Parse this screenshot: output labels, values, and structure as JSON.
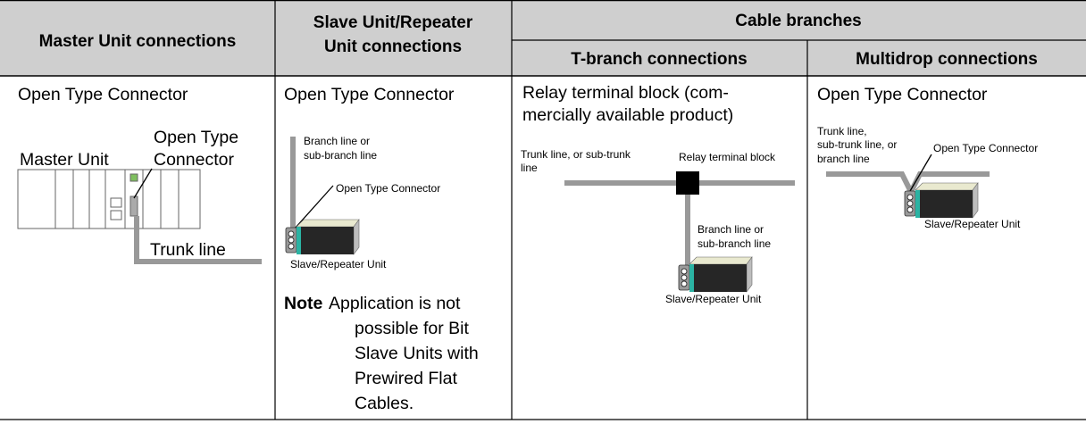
{
  "header": {
    "master": "Master Unit connections",
    "slave": [
      "Slave Unit/Repeater",
      "Unit connections"
    ],
    "cable_branches": "Cable branches",
    "t_branch": "T-branch connections",
    "multidrop": "Multidrop connections"
  },
  "master_column": {
    "heading": "Open Type Connector",
    "master_unit": "Master Unit",
    "connector": [
      "Open Type",
      "Connector"
    ],
    "trunk_line": "Trunk line"
  },
  "slave_column": {
    "heading": "Open Type Connector",
    "branch_line": [
      "Branch line or",
      "sub-branch line"
    ],
    "connector": "Open Type Connector",
    "unit": "Slave/Repeater Unit",
    "note_label": "Note",
    "note": [
      "Application is not",
      "possible for Bit",
      "Slave Units with",
      "Prewired Flat",
      "Cables."
    ]
  },
  "t_branch_column": {
    "heading": [
      "Relay terminal block (com-",
      "mercially available product)"
    ],
    "trunk_line": [
      "Trunk line, or sub-trunk",
      "line"
    ],
    "relay_block": "Relay terminal block",
    "branch_line": [
      "Branch line or",
      "sub-branch line"
    ],
    "unit": "Slave/Repeater Unit"
  },
  "multidrop_column": {
    "heading": "Open Type Connector",
    "trunk_line": [
      "Trunk line,",
      "sub-trunk line, or",
      "branch line"
    ],
    "connector": "Open Type Connector",
    "unit": "Slave/Repeater Unit"
  }
}
